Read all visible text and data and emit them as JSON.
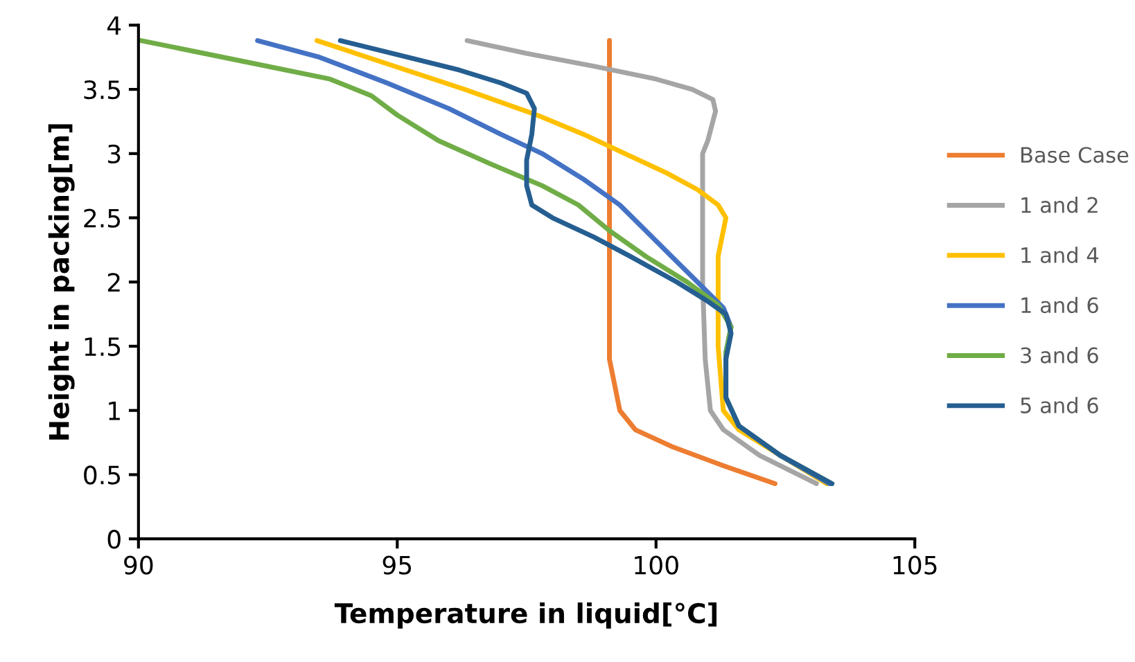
{
  "chart_data": {
    "type": "line",
    "xlabel": "Temperature in liquid[°C]",
    "ylabel": "Height in packing[m]",
    "xlim": [
      90,
      105
    ],
    "xticks": [
      90,
      95,
      100,
      105
    ],
    "ylim": [
      0,
      4
    ],
    "yticks": [
      0,
      {
        "value": 0.5,
        "label": "0.5"
      },
      1,
      {
        "value": 1.5,
        "label": "1.5"
      },
      2,
      {
        "value": 2.5,
        "label": "2.5"
      },
      3,
      {
        "value": 3.5,
        "label": "3.5"
      },
      4
    ],
    "grid": false,
    "legend": "right",
    "marker": "none",
    "line_style": "solid",
    "series": [
      {
        "name": "Base Case",
        "color": "#ed7d31",
        "x": [
          99.1,
          99.1,
          99.2,
          99.3,
          99.6,
          100.3,
          101.3,
          102.3
        ],
        "values": [
          3.88,
          1.4,
          1.2,
          1.0,
          0.85,
          0.72,
          0.57,
          0.43
        ]
      },
      {
        "name": "1 and 2",
        "color": "#a5a5a5",
        "x": [
          96.35,
          97.5,
          98.8,
          100.0,
          100.7,
          101.1,
          101.15,
          101.0,
          100.9,
          100.9,
          100.95,
          101.05,
          101.3,
          102.0,
          103.1
        ],
        "values": [
          3.88,
          3.78,
          3.68,
          3.58,
          3.5,
          3.42,
          3.33,
          3.1,
          3.0,
          2.0,
          1.4,
          1.0,
          0.85,
          0.65,
          0.43
        ]
      },
      {
        "name": "1 and 4",
        "color": "#ffc000",
        "x": [
          93.45,
          94.8,
          96.3,
          97.7,
          98.6,
          99.4,
          100.2,
          100.8,
          101.2,
          101.35,
          101.3,
          101.2,
          101.2,
          101.3,
          101.6,
          102.4,
          103.3
        ],
        "values": [
          3.88,
          3.7,
          3.5,
          3.3,
          3.15,
          3.0,
          2.85,
          2.72,
          2.6,
          2.5,
          2.4,
          2.2,
          1.5,
          1.0,
          0.85,
          0.65,
          0.43
        ]
      },
      {
        "name": "1 and 6",
        "color": "#4472c4",
        "x": [
          92.3,
          93.5,
          94.8,
          96.0,
          97.0,
          97.8,
          98.6,
          99.3,
          99.8,
          100.3,
          100.8,
          101.3,
          101.45,
          101.35,
          101.35,
          101.6,
          102.4,
          103.35
        ],
        "values": [
          3.88,
          3.75,
          3.55,
          3.35,
          3.15,
          3.0,
          2.8,
          2.6,
          2.4,
          2.2,
          2.0,
          1.8,
          1.65,
          1.45,
          1.1,
          0.88,
          0.65,
          0.43
        ]
      },
      {
        "name": "3 and 6",
        "color": "#70ad47",
        "x": [
          90.05,
          92.0,
          93.7,
          94.5,
          95.0,
          95.8,
          96.8,
          97.8,
          98.5,
          99.1,
          99.8,
          100.6,
          101.2,
          101.45,
          101.35,
          101.35,
          101.6,
          102.4,
          103.4
        ],
        "values": [
          3.88,
          3.72,
          3.58,
          3.45,
          3.3,
          3.1,
          2.92,
          2.75,
          2.6,
          2.4,
          2.2,
          2.0,
          1.82,
          1.65,
          1.45,
          1.1,
          0.88,
          0.65,
          0.43
        ]
      },
      {
        "name": "5 and 6",
        "color": "#255e91",
        "x": [
          93.9,
          95.0,
          96.2,
          97.0,
          97.5,
          97.65,
          97.6,
          97.5,
          97.5,
          97.6,
          98.0,
          98.8,
          99.5,
          100.4,
          101.0,
          101.35,
          101.45,
          101.35,
          101.35,
          101.6,
          102.4,
          103.4
        ],
        "values": [
          3.88,
          3.77,
          3.65,
          3.55,
          3.47,
          3.35,
          3.15,
          2.95,
          2.75,
          2.6,
          2.5,
          2.35,
          2.2,
          2.0,
          1.85,
          1.75,
          1.6,
          1.4,
          1.1,
          0.88,
          0.65,
          0.43
        ]
      }
    ]
  }
}
